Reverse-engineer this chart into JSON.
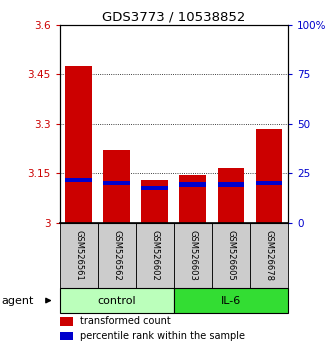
{
  "title": "GDS3773 / 10538852",
  "samples": [
    "GSM526561",
    "GSM526562",
    "GSM526602",
    "GSM526603",
    "GSM526605",
    "GSM526678"
  ],
  "red_values": [
    3.475,
    3.22,
    3.13,
    3.145,
    3.165,
    3.285
  ],
  "blue_values": [
    3.13,
    3.12,
    3.105,
    3.115,
    3.115,
    3.12
  ],
  "ylim": [
    3.0,
    3.6
  ],
  "yticks_left": [
    3.0,
    3.15,
    3.3,
    3.45,
    3.6
  ],
  "yticks_right": [
    0,
    25,
    50,
    75,
    100
  ],
  "ytick_labels_left": [
    "3",
    "3.15",
    "3.3",
    "3.45",
    "3.6"
  ],
  "ytick_labels_right": [
    "0",
    "25",
    "50",
    "75",
    "100%"
  ],
  "grid_lines": [
    3.15,
    3.3,
    3.45
  ],
  "bar_width": 0.7,
  "red_color": "#cc0000",
  "blue_color": "#0000cc",
  "control_color": "#bbffbb",
  "il6_color": "#33dd33",
  "sample_box_color": "#cccccc",
  "agent_label": "agent",
  "legend_red": "transformed count",
  "legend_blue": "percentile rank within the sample",
  "left_tick_color": "#cc0000",
  "right_tick_color": "#0000cc"
}
